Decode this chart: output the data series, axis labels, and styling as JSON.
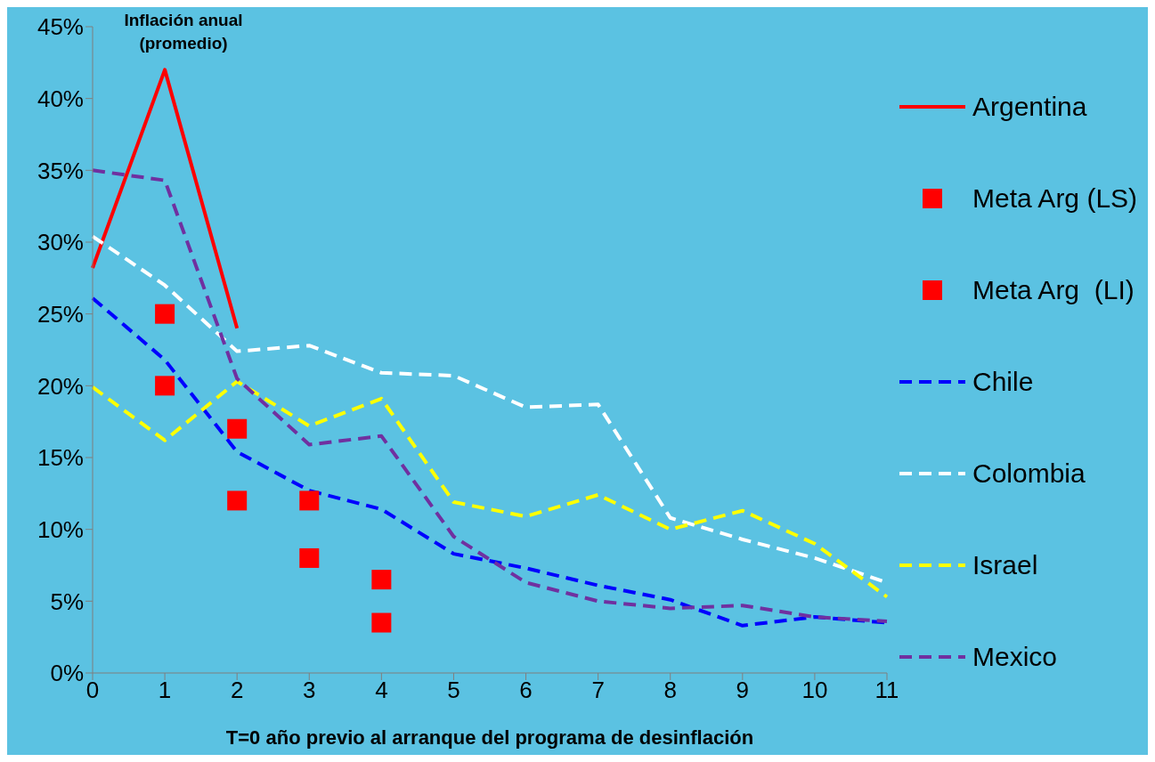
{
  "chart_data": {
    "type": "line",
    "xlabel": "T=0 año previo al arranque del programa de desinflación",
    "annotations": [
      "Inflación anual (promedio)"
    ],
    "categories": [
      "0",
      "1",
      "2",
      "3",
      "4",
      "5",
      "6",
      "7",
      "8",
      "9",
      "10",
      "11"
    ],
    "series": [
      {
        "name": "Argentina",
        "color": "#ff0000",
        "line_style": "solid",
        "values": [
          28.2,
          42,
          24,
          null,
          null,
          null,
          null,
          null,
          null,
          null,
          null,
          null
        ]
      },
      {
        "name": "Meta Arg (LS)",
        "type": "scatter",
        "marker": "square",
        "color": "#ff0000",
        "values": [
          null,
          25,
          17,
          12,
          6.5,
          null,
          null,
          null,
          null,
          null,
          null,
          null
        ]
      },
      {
        "name": "Meta Arg  (LI)",
        "type": "scatter",
        "marker": "square",
        "color": "#ff0000",
        "values": [
          null,
          20,
          12,
          8,
          3.5,
          null,
          null,
          null,
          null,
          null,
          null,
          null
        ]
      },
      {
        "name": "Chile",
        "color": "#0000ff",
        "line_style": "dashed",
        "values": [
          26.1,
          21.8,
          15.4,
          12.7,
          11.4,
          8.3,
          7.3,
          6.1,
          5.1,
          3.3,
          3.9,
          3.5
        ]
      },
      {
        "name": "Colombia",
        "color": "#ffffff",
        "line_style": "dashed",
        "values": [
          30.4,
          27,
          22.4,
          22.8,
          20.9,
          20.7,
          18.5,
          18.7,
          10.8,
          9.3,
          8,
          6.3
        ]
      },
      {
        "name": "Israel",
        "color": "#ffff00",
        "line_style": "dashed",
        "values": [
          19.9,
          16.2,
          20.3,
          17.2,
          19.1,
          11.9,
          10.9,
          12.4,
          10,
          11.3,
          9,
          5.3
        ]
      },
      {
        "name": "Mexico",
        "color": "#7030a0",
        "line_style": "dashed",
        "values": [
          35,
          34.3,
          20.5,
          15.9,
          16.5,
          9.5,
          6.3,
          5,
          4.5,
          4.7,
          3.9,
          3.6
        ]
      }
    ],
    "ylim": [
      0,
      45
    ],
    "yticks": [
      {
        "value": 0,
        "label": "0%"
      },
      {
        "value": 5,
        "label": "5%"
      },
      {
        "value": 10,
        "label": "10%"
      },
      {
        "value": 15,
        "label": "15%"
      },
      {
        "value": 20,
        "label": "20%"
      },
      {
        "value": 25,
        "label": "25%"
      },
      {
        "value": 30,
        "label": "30%"
      },
      {
        "value": 35,
        "label": "35%"
      },
      {
        "value": 40,
        "label": "40%"
      },
      {
        "value": 45,
        "label": "45%"
      }
    ],
    "grid": false,
    "legend": "right"
  }
}
